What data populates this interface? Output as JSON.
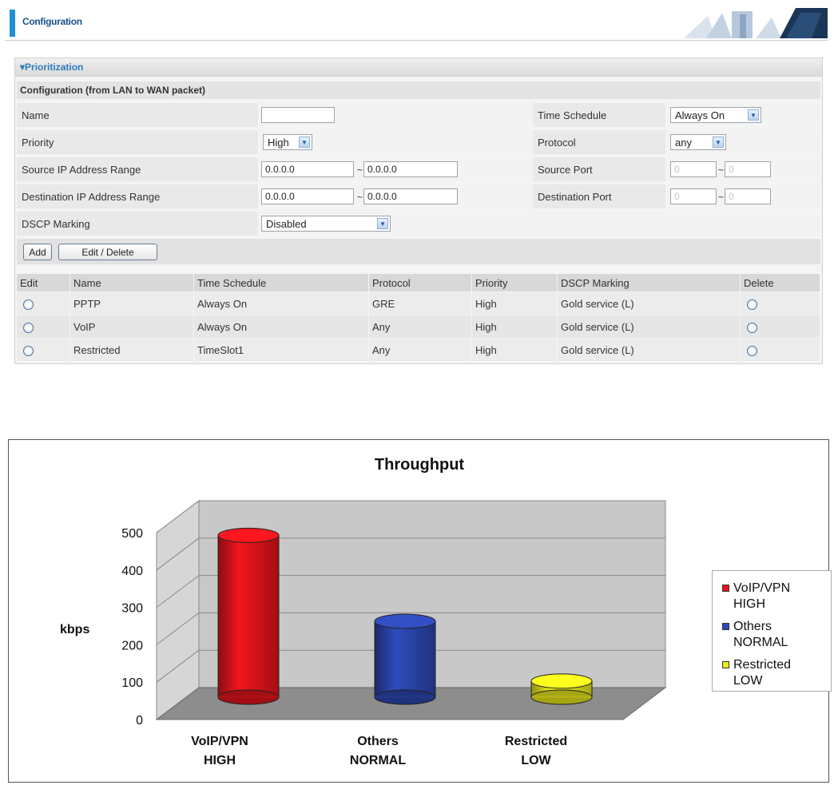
{
  "header": {
    "title": "Configuration"
  },
  "prioritization": {
    "section_title": "▾Prioritization",
    "subheading": "Configuration (from LAN to WAN packet)",
    "fields": {
      "name": {
        "label": "Name",
        "value": ""
      },
      "time_schedule": {
        "label": "Time Schedule",
        "value": "Always On"
      },
      "priority": {
        "label": "Priority",
        "value": "High"
      },
      "protocol": {
        "label": "Protocol",
        "value": "any"
      },
      "source_ip": {
        "label": "Source IP Address Range",
        "from": "0.0.0.0",
        "to": "0.0.0.0"
      },
      "source_port": {
        "label": "Source Port",
        "from": "0",
        "to": "0"
      },
      "dest_ip": {
        "label": "Destination IP Address Range",
        "from": "0.0.0.0",
        "to": "0.0.0.0"
      },
      "dest_port": {
        "label": "Destination Port",
        "from": "0",
        "to": "0"
      },
      "dscp": {
        "label": "DSCP Marking",
        "value": "Disabled"
      },
      "range_sep": "~"
    },
    "buttons": {
      "add": "Add",
      "edit_delete": "Edit / Delete"
    },
    "table": {
      "headers": [
        "Edit",
        "Name",
        "Time Schedule",
        "Protocol",
        "Priority",
        "DSCP Marking",
        "Delete"
      ],
      "rows": [
        {
          "name": "PPTP",
          "schedule": "Always On",
          "protocol": "GRE",
          "priority": "High",
          "dscp": "Gold service (L)"
        },
        {
          "name": "VoIP",
          "schedule": "Always On",
          "protocol": "Any",
          "priority": "High",
          "dscp": "Gold service (L)"
        },
        {
          "name": "Restricted",
          "schedule": "TimeSlot1",
          "protocol": "Any",
          "priority": "High",
          "dscp": "Gold service (L)"
        }
      ]
    }
  },
  "chart_data": {
    "type": "bar",
    "title": "Throughput",
    "xlabel": "",
    "ylabel": "kbps",
    "ylim": [
      0,
      500
    ],
    "yticks": [
      0,
      100,
      200,
      300,
      400,
      500
    ],
    "grid": true,
    "legend_position": "right",
    "categories": [
      {
        "line1": "VoIP/VPN",
        "line2": "HIGH"
      },
      {
        "line1": "Others",
        "line2": "NORMAL"
      },
      {
        "line1": "Restricted",
        "line2": "LOW"
      }
    ],
    "values": [
      465,
      235,
      75
    ],
    "colors": [
      "#e8141b",
      "#2d48b3",
      "#ecec1c"
    ],
    "legend": [
      {
        "line1": "VoIP/VPN",
        "line2": "HIGH"
      },
      {
        "line1": "Others",
        "line2": "NORMAL"
      },
      {
        "line1": "Restricted",
        "line2": "LOW"
      }
    ]
  }
}
